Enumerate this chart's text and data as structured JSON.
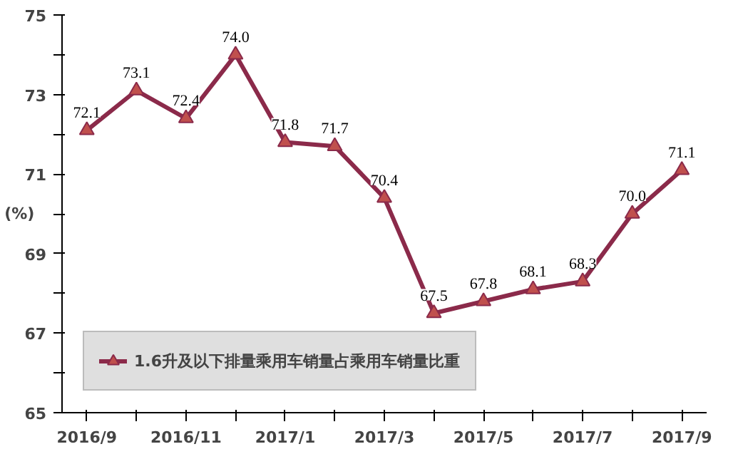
{
  "chart_data": {
    "type": "line",
    "ylabel": "(%)",
    "categories": [
      "2016/9",
      null,
      "2016/11",
      null,
      "2017/1",
      null,
      "2017/3",
      null,
      "2017/5",
      null,
      "2017/7",
      null,
      "2017/9"
    ],
    "series": [
      {
        "name": "1.6升及以下排量乘用车销量占乘用车销量比重",
        "color": "#8b2a4a",
        "values": [
          72.1,
          73.1,
          72.4,
          74.0,
          71.8,
          71.7,
          70.4,
          67.5,
          67.8,
          68.1,
          68.3,
          70.0,
          71.1
        ],
        "value_labels": [
          "72.1",
          "73.1",
          "72.4",
          "74.0",
          "71.8",
          "71.7",
          "70.4",
          "67.5",
          "67.8",
          "68.1",
          "68.3",
          "70.0",
          "71.1"
        ]
      }
    ],
    "ylim": [
      65,
      75
    ],
    "yticks": [
      65,
      {
        "value": 66,
        "label": null
      },
      67,
      {
        "value": 68,
        "label": null
      },
      69,
      {
        "value": 70,
        "label": null
      },
      71,
      {
        "value": 72,
        "label": null
      },
      73,
      {
        "value": 74,
        "label": null
      },
      75
    ],
    "marker": "triangle",
    "legend": "bottom left",
    "grid": false
  }
}
